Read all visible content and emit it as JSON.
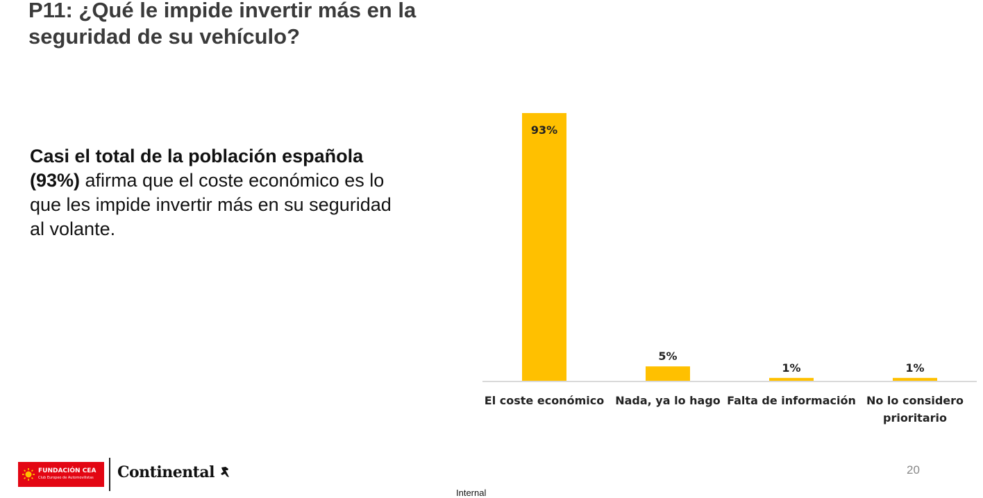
{
  "title_line1": "P11: ¿Qué le impide invertir más en la",
  "title_line2": "seguridad de su vehículo?",
  "summary": {
    "bold_part": "Casi el total de la población española (93%)",
    "regular_part": " afirma que el coste económico es lo que les impide invertir más en su seguridad al volante."
  },
  "chart_data": {
    "type": "bar",
    "categories": [
      [
        "El coste económico"
      ],
      [
        "Nada, ya lo hago"
      ],
      [
        "Falta de información"
      ],
      [
        "No lo considero",
        "prioritario"
      ]
    ],
    "values": [
      93,
      5,
      1,
      1
    ],
    "value_labels": [
      "93%",
      "5%",
      "1%",
      "1%"
    ],
    "ylim": [
      0,
      93
    ],
    "bar_color": "#FFC000",
    "axis_color": "#D9D9D9",
    "grid": false,
    "legend": false
  },
  "footer": {
    "cea_name": "FUNDACIÓN CEA",
    "cea_sub": "Club Europeo de Automovilistas",
    "continental": "Continental",
    "page_number": "20",
    "classification": "Internal"
  },
  "colors": {
    "cea_red": "#E30613",
    "title": "#3A3A3A"
  }
}
